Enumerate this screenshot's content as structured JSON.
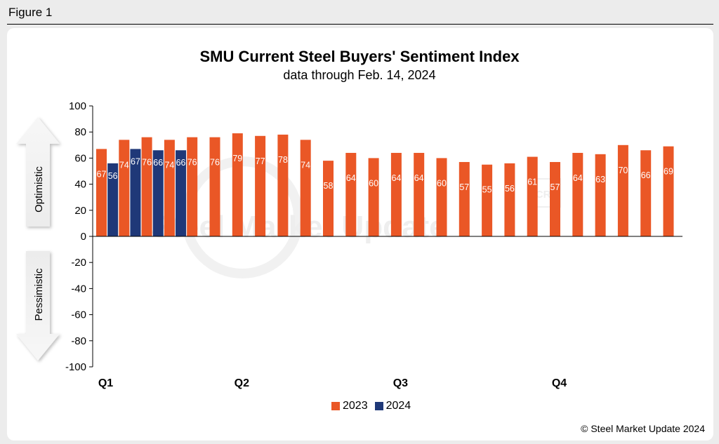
{
  "figure_label": "Figure 1",
  "copyright": "© Steel Market Update 2024",
  "watermark": "Steel Market Update",
  "watermark_logo": "CRU",
  "arrows": {
    "up": "Optimistic",
    "down": "Pessimistic"
  },
  "colors": {
    "series_2023": "#ea5726",
    "series_2024": "#1f3878",
    "axis": "#000000"
  },
  "chart_data": {
    "type": "bar",
    "title": "SMU Current Steel Buyers' Sentiment Index",
    "subtitle": "data through Feb. 14, 2024",
    "xlabel": "",
    "ylabel": "",
    "ylim": [
      -100,
      100
    ],
    "yticks": [
      100,
      80,
      60,
      40,
      20,
      0,
      -20,
      -40,
      -60,
      -80,
      -100
    ],
    "quarter_labels": [
      {
        "label": "Q1",
        "index": 0
      },
      {
        "label": "Q2",
        "index": 6
      },
      {
        "label": "Q3",
        "index": 13
      },
      {
        "label": "Q4",
        "index": 20
      }
    ],
    "legend": [
      "2023",
      "2024"
    ],
    "series": [
      {
        "name": "2023",
        "values": [
          67,
          74,
          76,
          74,
          76,
          76,
          79,
          77,
          78,
          74,
          58,
          64,
          60,
          64,
          64,
          60,
          57,
          55,
          56,
          61,
          57,
          64,
          63,
          70,
          66,
          69
        ]
      },
      {
        "name": "2024",
        "values": [
          56,
          67,
          66,
          66
        ]
      }
    ]
  }
}
